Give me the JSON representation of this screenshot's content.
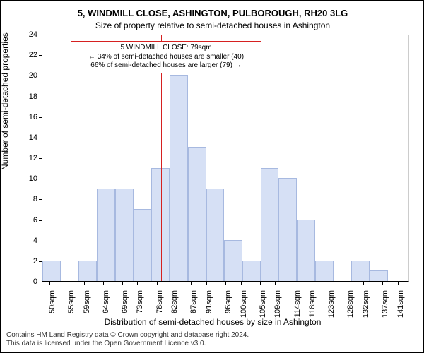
{
  "title_main": "5, WINDMILL CLOSE, ASHINGTON, PULBOROUGH, RH20 3LG",
  "title_sub": "Size of property relative to semi-detached houses in Ashington",
  "y_axis_label": "Number of semi-detached properties",
  "x_axis_label": "Distribution of semi-detached houses by size in Ashington",
  "footer_line1": "Contains HM Land Registry data © Crown copyright and database right 2024.",
  "footer_line2": "This data is licensed under the Open Government Licence v3.0.",
  "chart": {
    "type": "histogram",
    "background_color": "#ffffff",
    "bar_fill": "#d6e0f5",
    "bar_stroke": "#a7b9e0",
    "bar_stroke_width": 1,
    "ref_line_color": "#d62020",
    "ref_line_x": 79,
    "annotation_border_color": "#d62020",
    "annotation_line1": "5 WINDMILL CLOSE: 79sqm",
    "annotation_line2": "← 34% of semi-detached houses are smaller (40)",
    "annotation_line3": "66% of semi-detached houses are larger (79) →",
    "ylim": [
      0,
      24
    ],
    "ytick_step": 2,
    "xlim": [
      48,
      144
    ],
    "bin_width": 4.75,
    "x_ticks": [
      50,
      55,
      59,
      64,
      69,
      73,
      78,
      82,
      87,
      91,
      96,
      100,
      105,
      109,
      114,
      118,
      123,
      128,
      132,
      137,
      141
    ],
    "x_tick_unit": "sqm",
    "label_fontsize": 11,
    "title_fontsize": 13,
    "bins": [
      {
        "x": 48,
        "count": 2
      },
      {
        "x": 52.75,
        "count": 0
      },
      {
        "x": 57.5,
        "count": 2
      },
      {
        "x": 62.25,
        "count": 9
      },
      {
        "x": 67,
        "count": 9
      },
      {
        "x": 71.75,
        "count": 7
      },
      {
        "x": 76.5,
        "count": 11
      },
      {
        "x": 81.25,
        "count": 20
      },
      {
        "x": 86,
        "count": 13
      },
      {
        "x": 90.75,
        "count": 9
      },
      {
        "x": 95.5,
        "count": 4
      },
      {
        "x": 100.25,
        "count": 2
      },
      {
        "x": 105,
        "count": 11
      },
      {
        "x": 109.75,
        "count": 10
      },
      {
        "x": 114.5,
        "count": 6
      },
      {
        "x": 119.25,
        "count": 2
      },
      {
        "x": 124,
        "count": 0
      },
      {
        "x": 128.75,
        "count": 2
      },
      {
        "x": 133.5,
        "count": 1
      },
      {
        "x": 138.25,
        "count": 0
      }
    ]
  }
}
